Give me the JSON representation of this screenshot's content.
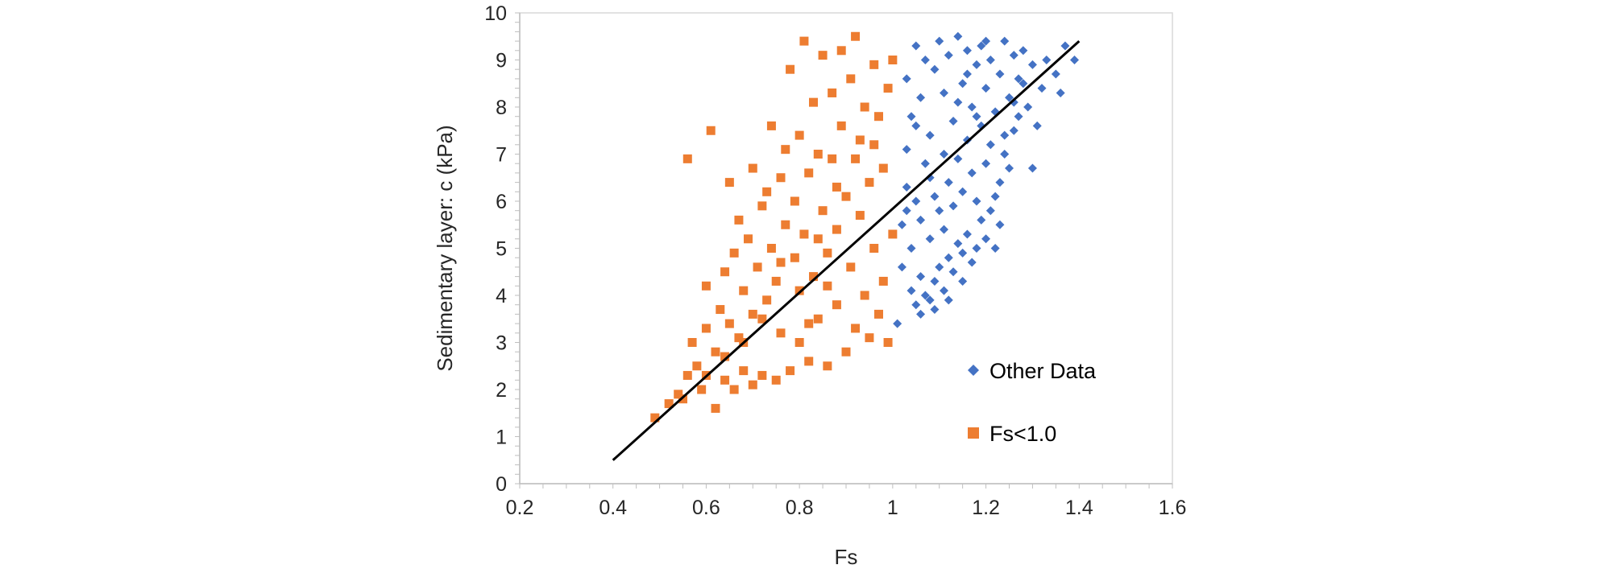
{
  "chart_data": {
    "type": "scatter",
    "title": "",
    "xlabel": "Fs",
    "ylabel": "Sedimentary layer: c (kPa)",
    "xlim": [
      0.2,
      1.6
    ],
    "ylim": [
      0,
      10
    ],
    "x_ticks": [
      "0.2",
      "0.4",
      "0.6",
      "0.8",
      "1",
      "1.2",
      "1.4",
      "1.6"
    ],
    "y_ticks": [
      "0",
      "1",
      "2",
      "3",
      "4",
      "5",
      "6",
      "7",
      "8",
      "9",
      "10"
    ],
    "grid": false,
    "legend_position": "right-center",
    "series": [
      {
        "name": "Other Data",
        "marker": "diamond",
        "color": "#4472C4",
        "points": [
          [
            1.01,
            3.4
          ],
          [
            1.02,
            4.6
          ],
          [
            1.02,
            5.5
          ],
          [
            1.03,
            6.3
          ],
          [
            1.03,
            7.1
          ],
          [
            1.03,
            8.6
          ],
          [
            1.04,
            4.1
          ],
          [
            1.04,
            5.0
          ],
          [
            1.04,
            7.8
          ],
          [
            1.05,
            3.8
          ],
          [
            1.05,
            6.0
          ],
          [
            1.05,
            9.3
          ],
          [
            1.06,
            4.4
          ],
          [
            1.06,
            5.6
          ],
          [
            1.06,
            8.2
          ],
          [
            1.07,
            4.0
          ],
          [
            1.07,
            6.8
          ],
          [
            1.07,
            9.0
          ],
          [
            1.08,
            3.9
          ],
          [
            1.08,
            5.2
          ],
          [
            1.08,
            7.4
          ],
          [
            1.09,
            4.3
          ],
          [
            1.09,
            6.1
          ],
          [
            1.09,
            8.8
          ],
          [
            1.1,
            4.6
          ],
          [
            1.1,
            5.8
          ],
          [
            1.1,
            9.4
          ],
          [
            1.11,
            4.1
          ],
          [
            1.11,
            7.0
          ],
          [
            1.11,
            8.3
          ],
          [
            1.12,
            4.8
          ],
          [
            1.12,
            6.4
          ],
          [
            1.12,
            9.1
          ],
          [
            1.13,
            4.5
          ],
          [
            1.13,
            5.9
          ],
          [
            1.13,
            7.7
          ],
          [
            1.14,
            5.1
          ],
          [
            1.14,
            6.9
          ],
          [
            1.14,
            9.5
          ],
          [
            1.15,
            4.9
          ],
          [
            1.15,
            6.2
          ],
          [
            1.15,
            8.5
          ],
          [
            1.16,
            5.3
          ],
          [
            1.16,
            7.3
          ],
          [
            1.16,
            9.2
          ],
          [
            1.17,
            4.7
          ],
          [
            1.17,
            6.6
          ],
          [
            1.17,
            8.0
          ],
          [
            1.18,
            5.0
          ],
          [
            1.18,
            6.0
          ],
          [
            1.18,
            8.9
          ],
          [
            1.19,
            5.6
          ],
          [
            1.19,
            7.6
          ],
          [
            1.19,
            9.3
          ],
          [
            1.2,
            5.2
          ],
          [
            1.2,
            6.8
          ],
          [
            1.2,
            8.4
          ],
          [
            1.21,
            5.8
          ],
          [
            1.21,
            7.2
          ],
          [
            1.21,
            9.0
          ],
          [
            1.22,
            6.1
          ],
          [
            1.22,
            7.9
          ],
          [
            1.23,
            6.4
          ],
          [
            1.23,
            8.7
          ],
          [
            1.24,
            7.0
          ],
          [
            1.24,
            9.4
          ],
          [
            1.25,
            6.7
          ],
          [
            1.25,
            8.2
          ],
          [
            1.26,
            7.5
          ],
          [
            1.26,
            9.1
          ],
          [
            1.27,
            7.8
          ],
          [
            1.28,
            8.5
          ],
          [
            1.29,
            8.0
          ],
          [
            1.3,
            6.7
          ],
          [
            1.3,
            8.9
          ],
          [
            1.31,
            7.6
          ],
          [
            1.32,
            8.4
          ],
          [
            1.33,
            9.0
          ],
          [
            1.35,
            8.7
          ],
          [
            1.36,
            8.3
          ],
          [
            1.37,
            9.3
          ],
          [
            1.39,
            9.0
          ],
          [
            1.23,
            5.5
          ],
          [
            1.22,
            5.0
          ],
          [
            1.15,
            4.3
          ],
          [
            1.12,
            3.9
          ],
          [
            1.09,
            3.7
          ],
          [
            1.06,
            3.6
          ],
          [
            1.27,
            8.6
          ],
          [
            1.26,
            8.1
          ],
          [
            1.28,
            9.2
          ],
          [
            1.24,
            7.4
          ],
          [
            1.18,
            7.8
          ],
          [
            1.11,
            5.4
          ],
          [
            1.08,
            6.5
          ],
          [
            1.05,
            7.6
          ],
          [
            1.03,
            5.8
          ],
          [
            1.14,
            8.1
          ],
          [
            1.2,
            9.4
          ],
          [
            1.16,
            8.7
          ]
        ]
      },
      {
        "name": "Fs<1.0",
        "marker": "square",
        "color": "#ED7D31",
        "points": [
          [
            0.49,
            1.4
          ],
          [
            0.52,
            1.7
          ],
          [
            0.54,
            1.9
          ],
          [
            0.55,
            1.8
          ],
          [
            0.56,
            2.3
          ],
          [
            0.56,
            6.9
          ],
          [
            0.57,
            3.0
          ],
          [
            0.58,
            2.5
          ],
          [
            0.59,
            2.0
          ],
          [
            0.6,
            3.3
          ],
          [
            0.6,
            4.2
          ],
          [
            0.61,
            7.5
          ],
          [
            0.62,
            1.6
          ],
          [
            0.62,
            2.8
          ],
          [
            0.63,
            3.7
          ],
          [
            0.64,
            2.2
          ],
          [
            0.64,
            4.5
          ],
          [
            0.65,
            6.4
          ],
          [
            0.65,
            3.4
          ],
          [
            0.66,
            2.0
          ],
          [
            0.66,
            4.9
          ],
          [
            0.67,
            3.1
          ],
          [
            0.67,
            5.6
          ],
          [
            0.68,
            2.4
          ],
          [
            0.68,
            4.1
          ],
          [
            0.69,
            5.2
          ],
          [
            0.7,
            2.1
          ],
          [
            0.7,
            6.7
          ],
          [
            0.7,
            3.6
          ],
          [
            0.71,
            4.6
          ],
          [
            0.72,
            5.9
          ],
          [
            0.72,
            2.3
          ],
          [
            0.73,
            3.9
          ],
          [
            0.73,
            6.2
          ],
          [
            0.74,
            5.0
          ],
          [
            0.74,
            7.6
          ],
          [
            0.75,
            2.2
          ],
          [
            0.75,
            4.3
          ],
          [
            0.76,
            6.5
          ],
          [
            0.76,
            3.2
          ],
          [
            0.77,
            5.5
          ],
          [
            0.77,
            7.1
          ],
          [
            0.78,
            2.4
          ],
          [
            0.78,
            8.8
          ],
          [
            0.79,
            4.8
          ],
          [
            0.79,
            6.0
          ],
          [
            0.8,
            3.0
          ],
          [
            0.8,
            7.4
          ],
          [
            0.81,
            5.3
          ],
          [
            0.81,
            9.4
          ],
          [
            0.82,
            2.6
          ],
          [
            0.82,
            6.6
          ],
          [
            0.83,
            4.4
          ],
          [
            0.83,
            8.1
          ],
          [
            0.84,
            3.5
          ],
          [
            0.84,
            7.0
          ],
          [
            0.85,
            5.8
          ],
          [
            0.85,
            9.1
          ],
          [
            0.86,
            2.5
          ],
          [
            0.86,
            4.9
          ],
          [
            0.87,
            6.9
          ],
          [
            0.87,
            8.3
          ],
          [
            0.88,
            3.8
          ],
          [
            0.88,
            5.4
          ],
          [
            0.89,
            7.6
          ],
          [
            0.89,
            9.2
          ],
          [
            0.9,
            2.8
          ],
          [
            0.9,
            6.1
          ],
          [
            0.91,
            4.6
          ],
          [
            0.91,
            8.6
          ],
          [
            0.92,
            3.3
          ],
          [
            0.92,
            9.5
          ],
          [
            0.93,
            5.7
          ],
          [
            0.93,
            7.3
          ],
          [
            0.94,
            4.0
          ],
          [
            0.94,
            8.0
          ],
          [
            0.95,
            3.1
          ],
          [
            0.95,
            6.4
          ],
          [
            0.96,
            5.0
          ],
          [
            0.96,
            8.9
          ],
          [
            0.97,
            3.6
          ],
          [
            0.97,
            7.8
          ],
          [
            0.98,
            4.3
          ],
          [
            0.98,
            6.7
          ],
          [
            0.99,
            3.0
          ],
          [
            0.99,
            8.4
          ],
          [
            1.0,
            5.3
          ],
          [
            1.0,
            9.0
          ],
          [
            0.76,
            4.7
          ],
          [
            0.8,
            4.1
          ],
          [
            0.84,
            5.2
          ],
          [
            0.88,
            6.3
          ],
          [
            0.92,
            6.9
          ],
          [
            0.96,
            7.2
          ],
          [
            0.72,
            3.5
          ],
          [
            0.68,
            3.0
          ],
          [
            0.64,
            2.7
          ],
          [
            0.6,
            2.3
          ],
          [
            0.82,
            3.4
          ],
          [
            0.86,
            4.2
          ]
        ]
      }
    ],
    "trendline": {
      "points": [
        [
          0.4,
          0.5
        ],
        [
          1.4,
          9.4
        ]
      ],
      "color": "#000000"
    }
  }
}
